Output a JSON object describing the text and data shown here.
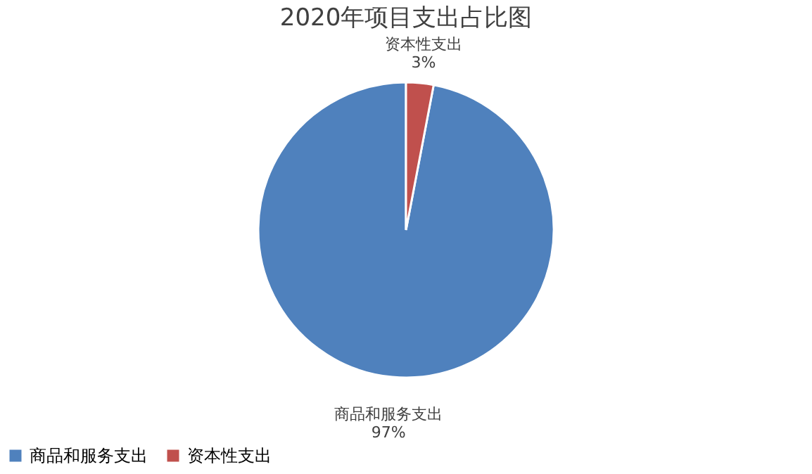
{
  "chart_data": {
    "type": "pie",
    "title": "2020年项目支出占比图",
    "categories": [
      "商品和服务支出",
      "资本性支出"
    ],
    "values": [
      97,
      3
    ],
    "colors": [
      "#4f81bd",
      "#c0504d"
    ],
    "value_labels": [
      "97%",
      "3%"
    ],
    "legend": "bottom"
  }
}
